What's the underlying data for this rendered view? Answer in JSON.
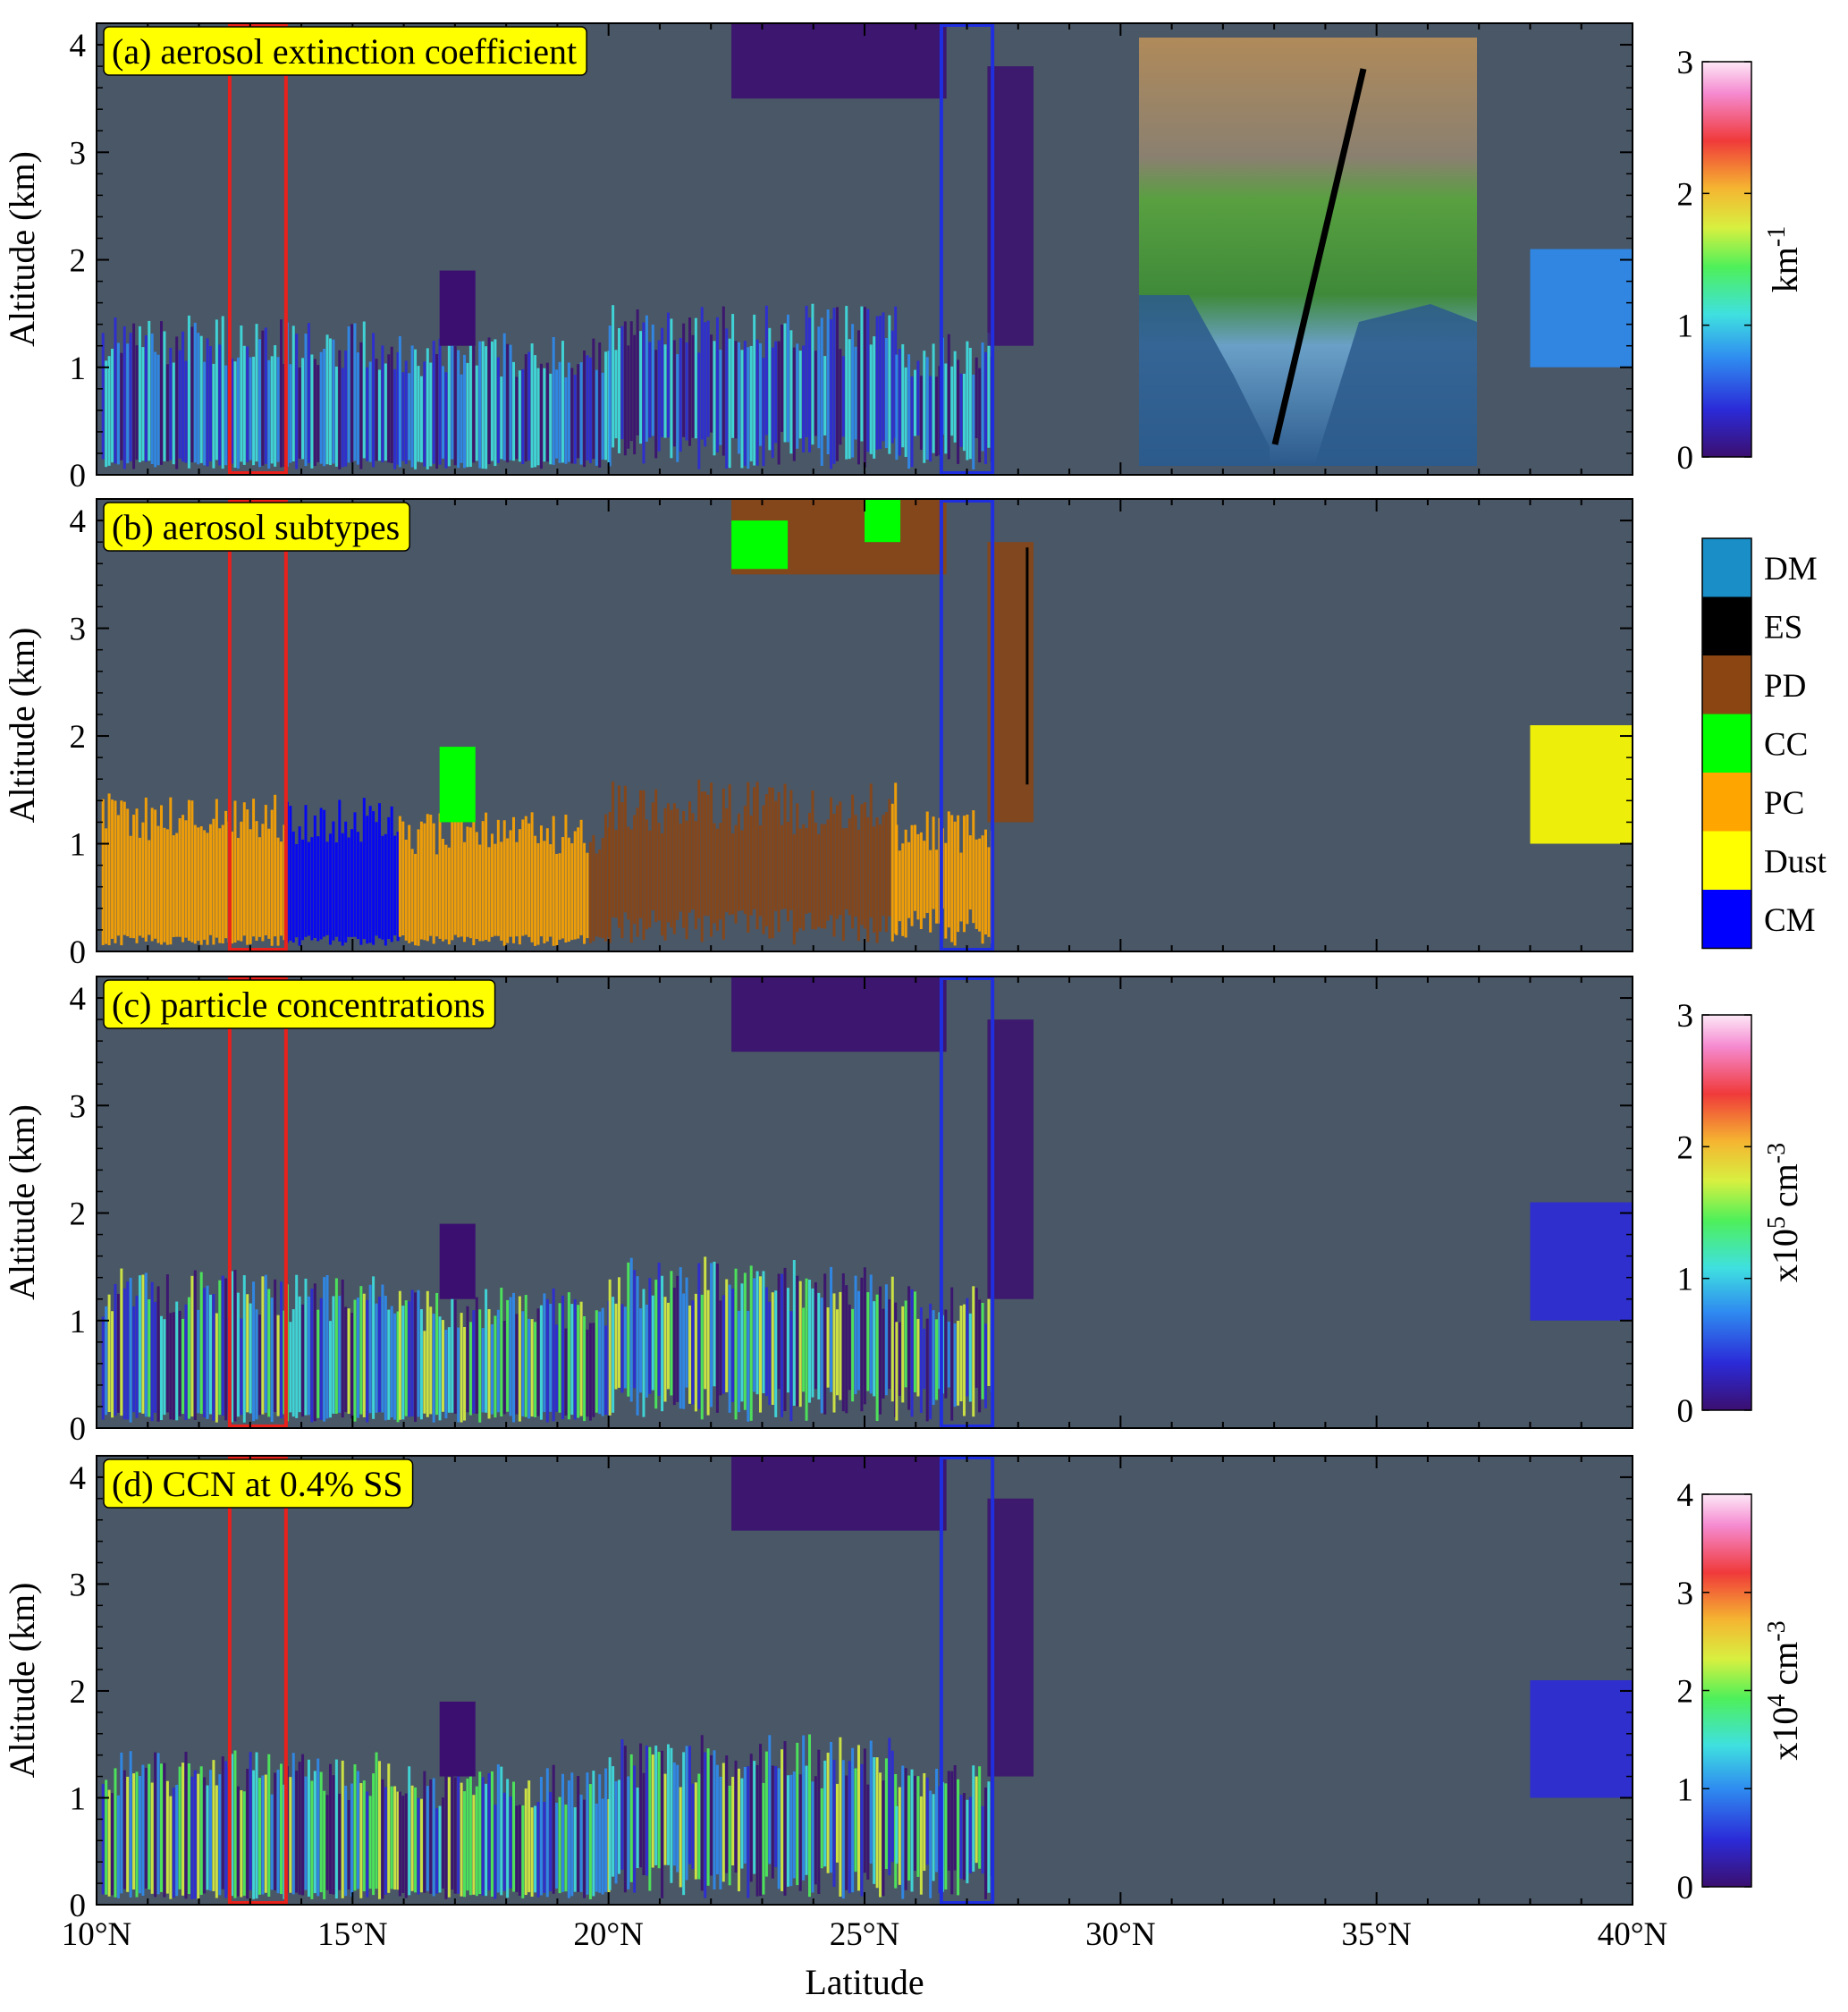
{
  "chart_data": {
    "type": "heatmap",
    "xlabel": "Latitude",
    "xlim": [
      10,
      40
    ],
    "x_ticks": [
      "10°N",
      "15°N",
      "20°N",
      "25°N",
      "30°N",
      "35°N",
      "40°N"
    ],
    "ylim": [
      0,
      4.2
    ],
    "y_ticks": [
      "0",
      "1",
      "2",
      "3",
      "4"
    ],
    "highlight_boxes": [
      {
        "color": "#e8211c",
        "lat_range": [
          12.6,
          13.7
        ]
      },
      {
        "color": "#1f2fe0",
        "lat_range": [
          26.5,
          27.5
        ]
      }
    ],
    "panels": [
      {
        "title": "(a) aerosol extinction coefficient",
        "ylabel": "Altitude (km)",
        "colorbar": {
          "label": "km",
          "label_sup": "-1",
          "ticks": [
            "0",
            "1",
            "2",
            "3"
          ],
          "range": [
            0,
            3
          ]
        },
        "has_map_inset": true
      },
      {
        "title": "(b) aerosol subtypes",
        "ylabel": "Altitude (km)",
        "categories": [
          {
            "name": "DM",
            "color": "#1a8ec7"
          },
          {
            "name": "ES",
            "color": "#000000"
          },
          {
            "name": "PD",
            "color": "#8b4513"
          },
          {
            "name": "CC",
            "color": "#00ff00"
          },
          {
            "name": "PC",
            "color": "#ffa500"
          },
          {
            "name": "Dust",
            "color": "#ffff00"
          },
          {
            "name": "CM",
            "color": "#0000ff"
          }
        ]
      },
      {
        "title": "(c) particle concentrations",
        "ylabel": "Altitude (km)",
        "colorbar": {
          "label": "x10",
          "label_sup": "5",
          "label_tail": " cm",
          "label_sup2": "-3",
          "ticks": [
            "0",
            "1",
            "2",
            "3"
          ],
          "range": [
            0,
            3
          ]
        }
      },
      {
        "title": "(d) CCN at 0.4% SS",
        "ylabel": "Altitude (km)",
        "colorbar": {
          "label": "x10",
          "label_sup": "4",
          "label_tail": " cm",
          "label_sup2": "-3",
          "ticks": [
            "0",
            "1",
            "2",
            "3",
            "4"
          ],
          "range": [
            0,
            4
          ]
        }
      }
    ]
  },
  "colors": {
    "background": "#4a5766",
    "label_box": "#ffff00"
  }
}
